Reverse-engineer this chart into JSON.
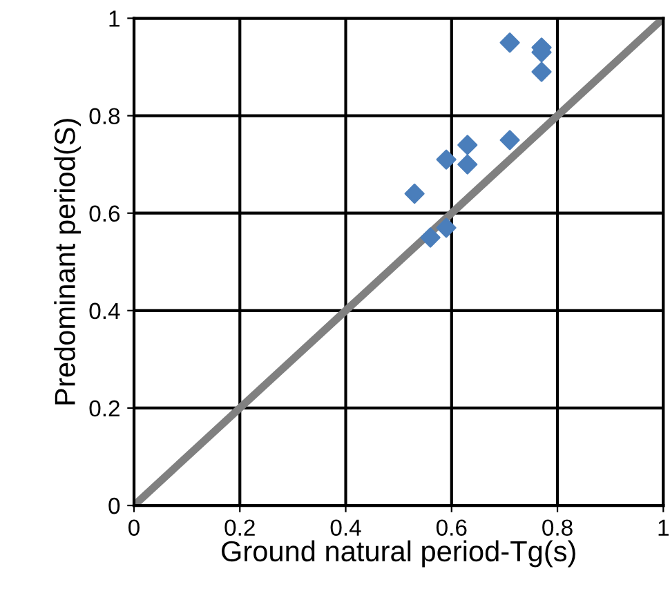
{
  "chart_data": {
    "type": "scatter",
    "xlabel": "Ground natural period-Tg(s)",
    "ylabel": "Predominant period(S)",
    "series": [
      {
        "color": "#4a7ebb",
        "marker": "diamond",
        "x": [
          0.53,
          0.56,
          0.59,
          0.59,
          0.63,
          0.63,
          0.71,
          0.71,
          0.77,
          0.77,
          0.77
        ],
        "values": [
          0.64,
          0.55,
          0.57,
          0.71,
          0.74,
          0.7,
          0.75,
          0.95,
          0.94,
          0.93,
          0.89
        ]
      },
      {
        "type": "line",
        "color": "#808080",
        "marker": "none",
        "x": [
          0,
          1
        ],
        "values": [
          0,
          1
        ]
      }
    ],
    "xlim": [
      0,
      1
    ],
    "ylim": [
      0,
      1
    ],
    "xticks": [
      0,
      0.2,
      0.4,
      0.6,
      0.8,
      1
    ],
    "yticks": [
      0,
      0.2,
      0.4,
      0.6,
      0.8,
      1
    ],
    "grid": true,
    "legend": false
  }
}
